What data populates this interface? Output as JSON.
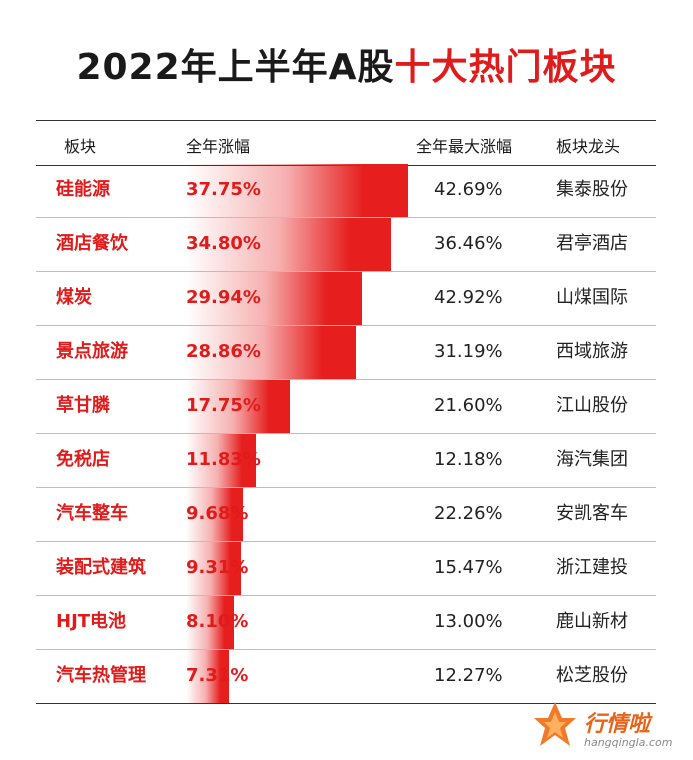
{
  "title": {
    "main": "2022年上半年A股",
    "accent": "十大热门板块"
  },
  "columns": {
    "sector": "板块",
    "gain": "全年涨幅",
    "max_gain": "全年最大涨幅",
    "leader": "板块龙头"
  },
  "brand": {
    "name": "行情啦",
    "url": "hangqingla.com"
  },
  "colors": {
    "accent": "#e01b1b",
    "bar": "#e61e1e",
    "brand": "#e8641b"
  },
  "chart_data": {
    "type": "table",
    "columns": [
      "板块",
      "全年涨幅",
      "全年最大涨幅",
      "板块龙头"
    ],
    "rows": [
      {
        "sector": "硅能源",
        "gain": "37.75%",
        "gain_value": 37.75,
        "max_gain": "42.69%",
        "leader": "集泰股份"
      },
      {
        "sector": "酒店餐饮",
        "gain": "34.80%",
        "gain_value": 34.8,
        "max_gain": "36.46%",
        "leader": "君亭酒店"
      },
      {
        "sector": "煤炭",
        "gain": "29.94%",
        "gain_value": 29.94,
        "max_gain": "42.92%",
        "leader": "山煤国际"
      },
      {
        "sector": "景点旅游",
        "gain": "28.86%",
        "gain_value": 28.86,
        "max_gain": "31.19%",
        "leader": "西域旅游"
      },
      {
        "sector": "草甘膦",
        "gain": "17.75%",
        "gain_value": 17.75,
        "max_gain": "21.60%",
        "leader": "江山股份"
      },
      {
        "sector": "免税店",
        "gain": "11.83%",
        "gain_value": 11.83,
        "max_gain": "12.18%",
        "leader": "海汽集团"
      },
      {
        "sector": "汽车整车",
        "gain": "9.68%",
        "gain_value": 9.68,
        "max_gain": "22.26%",
        "leader": "安凯客车"
      },
      {
        "sector": "装配式建筑",
        "gain": "9.31%",
        "gain_value": 9.31,
        "max_gain": "15.47%",
        "leader": "浙江建投"
      },
      {
        "sector": "HJT电池",
        "gain": "8.10%",
        "gain_value": 8.1,
        "max_gain": "13.00%",
        "leader": "鹿山新材"
      },
      {
        "sector": "汽车热管理",
        "gain": "7.31%",
        "gain_value": 7.31,
        "max_gain": "12.27%",
        "leader": "松芝股份"
      }
    ]
  }
}
